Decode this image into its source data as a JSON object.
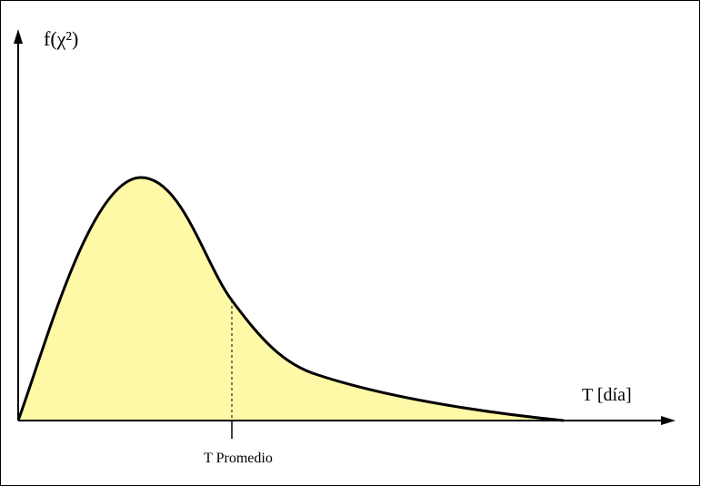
{
  "y_axis_label": "f(χ²)",
  "x_axis_label": "T [día]",
  "marker_label": "T Promedio"
}
